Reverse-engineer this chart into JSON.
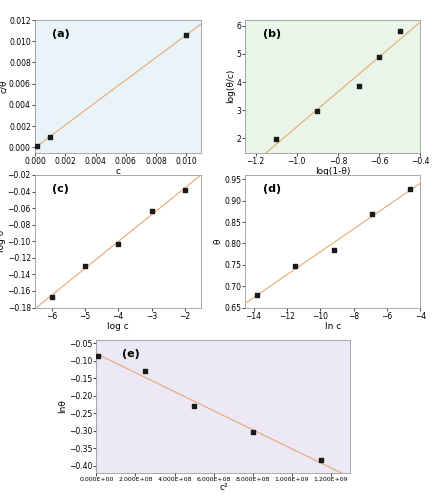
{
  "subplot_a": {
    "label": "(a)",
    "x": [
      0.0001,
      0.001,
      0.01
    ],
    "y": [
      9.09e-05,
      0.001,
      0.0106
    ],
    "xlabel": "c",
    "ylabel": "c/θ",
    "xlim": [
      0.0,
      0.011
    ],
    "ylim": [
      -0.0005,
      0.012
    ],
    "xticks": [
      0.0,
      0.002,
      0.004,
      0.006,
      0.008,
      0.01
    ],
    "bg_color": "#e8f4f8"
  },
  "subplot_b": {
    "label": "(b)",
    "x": [
      -1.1,
      -0.9,
      -0.7,
      -0.6,
      -0.5
    ],
    "y": [
      1.97,
      2.97,
      3.87,
      4.87,
      5.82
    ],
    "xlabel": "log(1-θ)",
    "ylabel": "log(θ/c)",
    "xlim": [
      -1.25,
      -0.4
    ],
    "ylim": [
      1.5,
      6.2
    ],
    "bg_color": "#e8f5e8"
  },
  "subplot_c": {
    "label": "(c)",
    "x": [
      -6,
      -5,
      -4,
      -3,
      -2
    ],
    "y": [
      -0.167,
      -0.13,
      -0.103,
      -0.064,
      -0.038
    ],
    "xlabel": "log c",
    "ylabel": "log θ",
    "xlim": [
      -6.5,
      -1.5
    ],
    "ylim": [
      -0.18,
      -0.02
    ],
    "bg_color": "#ffffff"
  },
  "subplot_d": {
    "label": "(d)",
    "x": [
      -13.8,
      -11.5,
      -9.2,
      -6.9,
      -4.6
    ],
    "y": [
      0.68,
      0.748,
      0.785,
      0.868,
      0.928
    ],
    "xlabel": "ln c",
    "ylabel": "θ",
    "xlim": [
      -14.5,
      -4.0
    ],
    "ylim": [
      0.65,
      0.96
    ],
    "bg_color": "#ffffff"
  },
  "subplot_e": {
    "label": "(e)",
    "x": [
      10000000.0,
      250000000.0,
      500000000.0,
      800000000.0,
      1150000000.0
    ],
    "y": [
      -0.085,
      -0.13,
      -0.23,
      -0.305,
      -0.385
    ],
    "xlabel": "c²",
    "ylabel": "lnθ",
    "xlim": [
      0,
      1300000000.0
    ],
    "ylim": [
      -0.42,
      -0.04
    ],
    "bg_color": "#ece8f5"
  },
  "line_color": "#E8A870",
  "marker_color": "#1a1a1a"
}
